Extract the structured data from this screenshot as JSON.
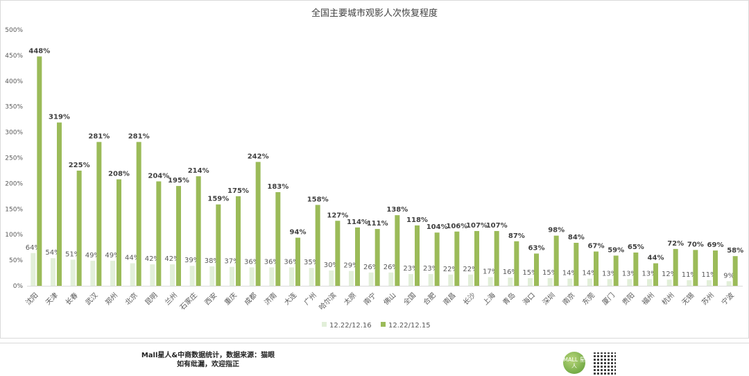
{
  "chart_data": {
    "type": "bar",
    "title": "全国主要城市观影人次恢复程度",
    "xlabel": "",
    "ylabel": "",
    "ylim": [
      0,
      500
    ],
    "yticks": [
      "0%",
      "50%",
      "100%",
      "150%",
      "200%",
      "250%",
      "300%",
      "350%",
      "400%",
      "450%",
      "500%"
    ],
    "grid": false,
    "legend_position": "bottom",
    "categories": [
      "沈阳",
      "天津",
      "长春",
      "武汉",
      "郑州",
      "北京",
      "昆明",
      "兰州",
      "石家庄",
      "西安",
      "重庆",
      "成都",
      "济南",
      "大连",
      "广州",
      "哈尔滨",
      "太原",
      "南宁",
      "佛山",
      "全国",
      "合肥",
      "南昌",
      "长沙",
      "上海",
      "青岛",
      "海口",
      "深圳",
      "南京",
      "东莞",
      "厦门",
      "贵阳",
      "福州",
      "杭州",
      "无锡",
      "苏州",
      "宁波"
    ],
    "series": [
      {
        "name": "12.22/12.16",
        "color": "#e2efd9",
        "label_bold": false,
        "values": [
          64,
          54,
          51,
          49,
          49,
          44,
          42,
          42,
          39,
          38,
          37,
          36,
          36,
          36,
          35,
          30,
          29,
          26,
          26,
          23,
          23,
          22,
          22,
          17,
          16,
          15,
          15,
          14,
          14,
          13,
          13,
          13,
          12,
          11,
          11,
          9
        ]
      },
      {
        "name": "12.22/12.15",
        "color": "#9bbb59",
        "label_bold": true,
        "values": [
          448,
          319,
          225,
          281,
          208,
          281,
          204,
          195,
          214,
          159,
          175,
          242,
          183,
          94,
          158,
          127,
          114,
          111,
          138,
          118,
          104,
          106,
          107,
          107,
          87,
          63,
          98,
          84,
          67,
          59,
          65,
          44,
          72,
          70,
          69,
          58
        ]
      }
    ]
  },
  "footer": {
    "line1": "Mall星人&中商数据统计，数据来源：猫眼",
    "line2": "如有纰漏，欢迎指正",
    "logo_text": "MALL 星人"
  }
}
